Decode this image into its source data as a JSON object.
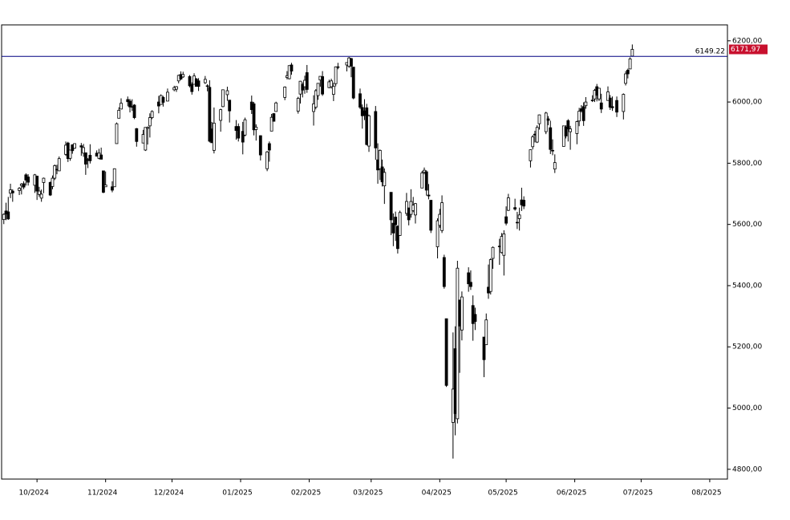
{
  "chart_data": {
    "type": "candlestick",
    "xlim": [
      0,
      328
    ],
    "ylim": [
      4768,
      6252
    ],
    "xticks": [
      {
        "value": 16,
        "label": "10/2024"
      },
      {
        "value": 47,
        "label": "11/2024"
      },
      {
        "value": 77,
        "label": "12/2024"
      },
      {
        "value": 108,
        "label": "01/2025"
      },
      {
        "value": 139,
        "label": "02/2025"
      },
      {
        "value": 167,
        "label": "03/2025"
      },
      {
        "value": 198,
        "label": "04/2025"
      },
      {
        "value": 228,
        "label": "05/2025"
      },
      {
        "value": 259,
        "label": "06/2025"
      },
      {
        "value": 289,
        "label": "07/2025"
      },
      {
        "value": 320,
        "label": "08/2025"
      }
    ],
    "yticks": [
      {
        "value": 4800,
        "label": "4800,00"
      },
      {
        "value": 5000,
        "label": "5000,00"
      },
      {
        "value": 5200,
        "label": "5200,00"
      },
      {
        "value": 5400,
        "label": "5400,00"
      },
      {
        "value": 5600,
        "label": "5600,00"
      },
      {
        "value": 5800,
        "label": "5800,00"
      },
      {
        "value": 6000,
        "label": "6000,00"
      },
      {
        "value": 6200,
        "label": "6200,00"
      }
    ],
    "up_color": "#ffffff",
    "down_color": "#000000",
    "hline": {
      "value": 6149.22,
      "label": "6149.22",
      "color": "#000080"
    },
    "last_price": {
      "value": 6171.97,
      "label": "6171,97",
      "color": "#c8102e"
    },
    "x": [
      1,
      2,
      3,
      4,
      5,
      8,
      9,
      10,
      11,
      12,
      15,
      16,
      17,
      18,
      19,
      22,
      23,
      24,
      25,
      26,
      29,
      30,
      31,
      32,
      33,
      36,
      37,
      38,
      39,
      40,
      43,
      44,
      45,
      46,
      47,
      50,
      51,
      52,
      53,
      54,
      57,
      58,
      59,
      60,
      61,
      64,
      65,
      66,
      67,
      68,
      71,
      72,
      73,
      75,
      78,
      79,
      80,
      81,
      82,
      85,
      86,
      87,
      88,
      89,
      92,
      93,
      94,
      95,
      96,
      99,
      100,
      102,
      103,
      106,
      107,
      109,
      110,
      113,
      114,
      115,
      117,
      120,
      121,
      122,
      123,
      124,
      128,
      129,
      130,
      131,
      134,
      135,
      136,
      137,
      138,
      141,
      142,
      143,
      144,
      145,
      148,
      149,
      150,
      151,
      152,
      156,
      157,
      158,
      159,
      162,
      163,
      164,
      165,
      166,
      169,
      170,
      171,
      172,
      173,
      176,
      177,
      178,
      179,
      180,
      183,
      184,
      185,
      186,
      187,
      190,
      191,
      192,
      193,
      194,
      197,
      198,
      199,
      200,
      201,
      204,
      205,
      206,
      207,
      208,
      211,
      212,
      213,
      214,
      218,
      219,
      220,
      221,
      222,
      225,
      226,
      227,
      228,
      229,
      232,
      233,
      234,
      235,
      236,
      239,
      240,
      241,
      242,
      243,
      246,
      247,
      248,
      249,
      250,
      254,
      255,
      256,
      257,
      260,
      261,
      262,
      263,
      264,
      267,
      268,
      269,
      270,
      271,
      274,
      275,
      276,
      278,
      281,
      282,
      283,
      284,
      285
    ],
    "ohlc": [
      [
        5616,
        5636,
        5601,
        5633
      ],
      [
        5644,
        5671,
        5614,
        5634
      ],
      [
        5641,
        5690,
        5615,
        5618
      ],
      [
        5702,
        5733,
        5686,
        5713
      ],
      [
        5709,
        5715,
        5674,
        5703
      ],
      [
        5711,
        5722,
        5696,
        5718
      ],
      [
        5727,
        5735,
        5698,
        5732
      ],
      [
        5733,
        5741,
        5715,
        5722
      ],
      [
        5762,
        5767,
        5727,
        5745
      ],
      [
        5755,
        5764,
        5727,
        5738
      ],
      [
        5728,
        5765,
        5703,
        5762
      ],
      [
        5758,
        5758,
        5680,
        5709
      ],
      [
        5698,
        5723,
        5690,
        5709
      ],
      [
        5686,
        5714,
        5674,
        5699
      ],
      [
        5737,
        5753,
        5702,
        5751
      ],
      [
        5737,
        5740,
        5693,
        5696
      ],
      [
        5724,
        5760,
        5715,
        5751
      ],
      [
        5751,
        5796,
        5745,
        5792
      ],
      [
        5778,
        5795,
        5764,
        5780
      ],
      [
        5775,
        5822,
        5775,
        5815
      ],
      [
        5829,
        5871,
        5824,
        5859
      ],
      [
        5866,
        5870,
        5804,
        5815
      ],
      [
        5816,
        5843,
        5808,
        5843
      ],
      [
        5860,
        5862,
        5831,
        5841
      ],
      [
        5849,
        5865,
        5847,
        5864
      ],
      [
        5857,
        5866,
        5824,
        5853
      ],
      [
        5833,
        5863,
        5821,
        5851
      ],
      [
        5834,
        5834,
        5762,
        5797
      ],
      [
        5812,
        5817,
        5784,
        5809
      ],
      [
        5826,
        5862,
        5799,
        5808
      ],
      [
        5833,
        5842,
        5823,
        5823
      ],
      [
        5816,
        5847,
        5813,
        5833
      ],
      [
        5827,
        5851,
        5813,
        5813
      ],
      [
        5775,
        5775,
        5702,
        5705
      ],
      [
        5723,
        5773,
        5723,
        5729
      ],
      [
        5723,
        5741,
        5705,
        5712
      ],
      [
        5723,
        5783,
        5723,
        5782
      ],
      [
        5864,
        5933,
        5864,
        5929
      ],
      [
        5947,
        5983,
        5947,
        5973
      ],
      [
        5977,
        6012,
        5976,
        5996
      ],
      [
        6008,
        6018,
        5986,
        6001
      ],
      [
        6003,
        6010,
        5966,
        5984
      ],
      [
        5985,
        6009,
        5971,
        5985
      ],
      [
        5990,
        5993,
        5944,
        5949
      ],
      [
        5913,
        5915,
        5854,
        5871
      ],
      [
        5866,
        5909,
        5866,
        5894
      ],
      [
        5843,
        5917,
        5840,
        5917
      ],
      [
        5914,
        5920,
        5861,
        5917
      ],
      [
        5922,
        5963,
        5884,
        5949
      ],
      [
        5949,
        5973,
        5944,
        5969
      ],
      [
        6000,
        6020,
        5963,
        5987
      ],
      [
        5992,
        6025,
        5992,
        6021
      ],
      [
        6015,
        6020,
        5985,
        5999
      ],
      [
        6003,
        6044,
        6003,
        6032
      ],
      [
        6040,
        6053,
        6035,
        6047
      ],
      [
        6042,
        6052,
        6033,
        6050
      ],
      [
        6069,
        6089,
        6061,
        6087
      ],
      [
        6090,
        6100,
        6072,
        6075
      ],
      [
        6082,
        6099,
        6079,
        6090
      ],
      [
        6083,
        6088,
        6048,
        6053
      ],
      [
        6057,
        6064,
        6024,
        6034
      ],
      [
        6058,
        6094,
        6058,
        6085
      ],
      [
        6075,
        6079,
        6051,
        6051
      ],
      [
        6069,
        6078,
        6036,
        6051
      ],
      [
        6063,
        6085,
        6059,
        6074
      ],
      [
        6053,
        6058,
        6035,
        6051
      ],
      [
        6048,
        6071,
        5868,
        5872
      ],
      [
        5912,
        5935,
        5866,
        5867
      ],
      [
        5842,
        5982,
        5832,
        5931
      ],
      [
        5940,
        5978,
        5903,
        5975
      ],
      [
        5985,
        6041,
        5983,
        6040
      ],
      [
        6024,
        6050,
        6004,
        6037
      ],
      [
        6006,
        6007,
        5933,
        5971
      ],
      [
        5920,
        5941,
        5877,
        5907
      ],
      [
        5920,
        5930,
        5871,
        5882
      ],
      [
        5904,
        5935,
        5829,
        5869
      ],
      [
        5892,
        5949,
        5888,
        5942
      ],
      [
        6000,
        6021,
        5961,
        5975
      ],
      [
        5994,
        6000,
        5891,
        5909
      ],
      [
        5910,
        5927,
        5874,
        5918
      ],
      [
        5890,
        5891,
        5809,
        5827
      ],
      [
        5782,
        5840,
        5774,
        5837
      ],
      [
        5864,
        5871,
        5805,
        5843
      ],
      [
        5905,
        5961,
        5905,
        5950
      ],
      [
        5962,
        5964,
        5937,
        5937
      ],
      [
        5969,
        6001,
        5969,
        5997
      ],
      [
        6015,
        6051,
        6006,
        6049
      ],
      [
        6080,
        6101,
        6074,
        6086
      ],
      [
        6076,
        6119,
        6074,
        6119
      ],
      [
        6121,
        6128,
        6089,
        6101
      ],
      [
        5970,
        6017,
        5962,
        6012
      ],
      [
        6026,
        6069,
        5995,
        6068
      ],
      [
        6057,
        6064,
        6015,
        6039
      ],
      [
        6050,
        6086,
        6027,
        6071
      ],
      [
        6096,
        6121,
        6030,
        6041
      ],
      [
        5969,
        6022,
        5923,
        5994
      ],
      [
        5983,
        6042,
        5976,
        6037
      ],
      [
        6021,
        6062,
        6007,
        6061
      ],
      [
        6072,
        6084,
        6050,
        6084
      ],
      [
        6083,
        6101,
        6020,
        6026
      ],
      [
        6047,
        6073,
        6045,
        6066
      ],
      [
        6050,
        6076,
        6044,
        6069
      ],
      [
        6025,
        6063,
        6003,
        6051
      ],
      [
        6060,
        6116,
        6051,
        6115
      ],
      [
        6115,
        6128,
        6107,
        6114
      ],
      [
        6121,
        6129,
        6100,
        6129
      ],
      [
        6117,
        6147,
        6111,
        6144
      ],
      [
        6142,
        6144,
        6081,
        6117
      ],
      [
        6114,
        6114,
        6009,
        6013
      ],
      [
        6027,
        6044,
        5977,
        5983
      ],
      [
        5982,
        5992,
        5913,
        5955
      ],
      [
        5971,
        6009,
        5941,
        5956
      ],
      [
        5981,
        5994,
        5858,
        5861
      ],
      [
        5856,
        5959,
        5837,
        5955
      ],
      [
        5969,
        5987,
        5811,
        5850
      ],
      [
        5811,
        5865,
        5733,
        5778
      ],
      [
        5782,
        5845,
        5745,
        5842
      ],
      [
        5788,
        5812,
        5724,
        5739
      ],
      [
        5726,
        5783,
        5667,
        5770
      ],
      [
        5705,
        5705,
        5565,
        5615
      ],
      [
        5604,
        5636,
        5529,
        5572
      ],
      [
        5624,
        5642,
        5546,
        5599
      ],
      [
        5594,
        5597,
        5505,
        5521
      ],
      [
        5564,
        5645,
        5563,
        5639
      ],
      [
        5636,
        5703,
        5628,
        5675
      ],
      [
        5654,
        5654,
        5597,
        5615
      ],
      [
        5633,
        5715,
        5622,
        5675
      ],
      [
        5645,
        5690,
        5640,
        5663
      ],
      [
        5631,
        5670,
        5603,
        5668
      ],
      [
        5719,
        5775,
        5719,
        5768
      ],
      [
        5771,
        5786,
        5764,
        5777
      ],
      [
        5772,
        5777,
        5694,
        5712
      ],
      [
        5696,
        5732,
        5682,
        5693
      ],
      [
        5679,
        5679,
        5572,
        5581
      ],
      [
        5527,
        5620,
        5489,
        5612
      ],
      [
        5597,
        5651,
        5589,
        5633
      ],
      [
        5580,
        5695,
        5572,
        5671
      ],
      [
        5492,
        5501,
        5390,
        5397
      ],
      [
        5292,
        5292,
        5069,
        5074
      ],
      [
        4953,
        5247,
        4835,
        5062
      ],
      [
        5194,
        5267,
        4911,
        4982
      ],
      [
        4965,
        5481,
        4950,
        5457
      ],
      [
        5353,
        5353,
        5115,
        5268
      ],
      [
        5255,
        5381,
        5221,
        5363
      ],
      [
        5442,
        5460,
        5380,
        5406
      ],
      [
        5411,
        5450,
        5386,
        5397
      ],
      [
        5335,
        5368,
        5220,
        5276
      ],
      [
        5306,
        5328,
        5255,
        5283
      ],
      [
        5232,
        5232,
        5101,
        5158
      ],
      [
        5207,
        5309,
        5207,
        5288
      ],
      [
        5395,
        5469,
        5357,
        5376
      ],
      [
        5381,
        5489,
        5371,
        5485
      ],
      [
        5489,
        5528,
        5455,
        5525
      ],
      [
        5529,
        5553,
        5468,
        5529
      ],
      [
        5508,
        5572,
        5505,
        5561
      ],
      [
        5499,
        5581,
        5433,
        5569
      ],
      [
        5625,
        5659,
        5597,
        5604
      ],
      [
        5646,
        5700,
        5644,
        5687
      ],
      [
        5655,
        5684,
        5645,
        5650
      ],
      [
        5605,
        5641,
        5585,
        5607
      ],
      [
        5619,
        5655,
        5580,
        5631
      ],
      [
        5680,
        5720,
        5644,
        5664
      ],
      [
        5679,
        5692,
        5650,
        5660
      ],
      [
        5808,
        5845,
        5786,
        5844
      ],
      [
        5854,
        5892,
        5845,
        5886
      ],
      [
        5895,
        5906,
        5868,
        5892
      ],
      [
        5869,
        5924,
        5866,
        5917
      ],
      [
        5929,
        5959,
        5910,
        5958
      ],
      [
        5903,
        5968,
        5895,
        5964
      ],
      [
        5945,
        5954,
        5924,
        5940
      ],
      [
        5916,
        5939,
        5830,
        5845
      ],
      [
        5842,
        5878,
        5826,
        5842
      ],
      [
        5781,
        5829,
        5768,
        5802
      ],
      [
        5855,
        5922,
        5855,
        5922
      ],
      [
        5918,
        5924,
        5881,
        5889
      ],
      [
        5939,
        5944,
        5871,
        5912
      ],
      [
        5903,
        5922,
        5844,
        5912
      ],
      [
        5897,
        5939,
        5862,
        5936
      ],
      [
        5938,
        5981,
        5921,
        5970
      ],
      [
        5978,
        5990,
        5966,
        5971
      ],
      [
        5985,
        5999,
        5922,
        5939
      ],
      [
        5988,
        6016,
        5978,
        6000
      ],
      [
        6005,
        6022,
        6000,
        6006
      ],
      [
        6010,
        6043,
        6000,
        6038
      ],
      [
        6050,
        6059,
        6002,
        6022
      ],
      [
        6010,
        6046,
        6003,
        6045
      ],
      [
        5997,
        6027,
        5964,
        5977
      ],
      [
        6005,
        6051,
        6005,
        6033
      ],
      [
        6013,
        6023,
        5974,
        5983
      ],
      [
        5985,
        6018,
        5971,
        5981
      ],
      [
        6005,
        6018,
        5951,
        5967
      ],
      [
        5969,
        6028,
        5943,
        6025
      ],
      [
        6061,
        6101,
        6054,
        6092
      ],
      [
        6104,
        6109,
        6077,
        6092
      ],
      [
        6108,
        6146,
        6108,
        6141
      ],
      [
        6150,
        6188,
        6148,
        6171.97
      ]
    ]
  }
}
